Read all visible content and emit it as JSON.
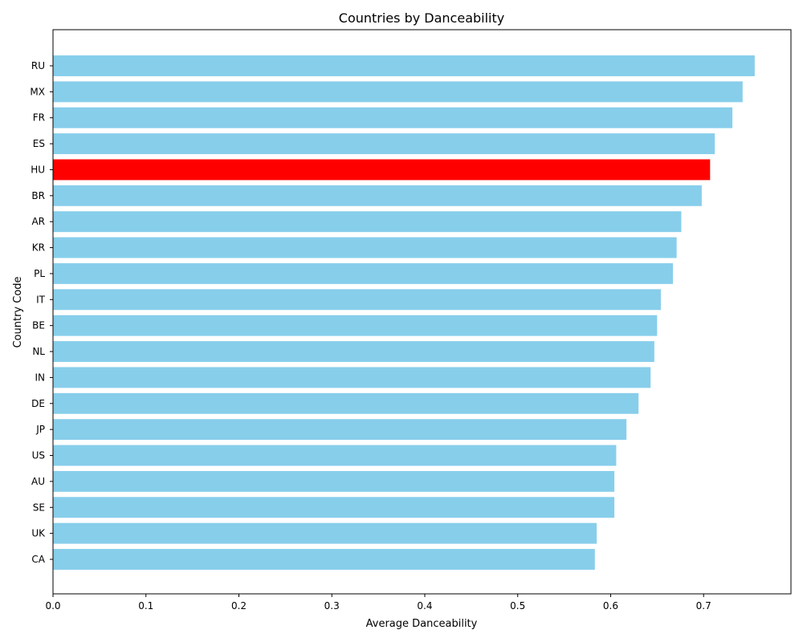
{
  "chart_data": {
    "type": "bar",
    "orientation": "horizontal",
    "title": "Countries by Danceability",
    "xlabel": "Average Danceability",
    "ylabel": "Country Code",
    "xlim": [
      0,
      0.794
    ],
    "xticks": [
      "0.0",
      "0.1",
      "0.2",
      "0.3",
      "0.4",
      "0.5",
      "0.6",
      "0.7"
    ],
    "categories": [
      "RU",
      "MX",
      "FR",
      "ES",
      "HU",
      "BR",
      "AR",
      "KR",
      "PL",
      "IT",
      "BE",
      "NL",
      "IN",
      "DE",
      "JP",
      "US",
      "AU",
      "SE",
      "UK",
      "CA"
    ],
    "values": [
      0.755,
      0.742,
      0.731,
      0.712,
      0.707,
      0.698,
      0.676,
      0.671,
      0.667,
      0.654,
      0.65,
      0.647,
      0.643,
      0.63,
      0.617,
      0.606,
      0.604,
      0.604,
      0.585,
      0.583
    ],
    "highlight": "HU",
    "colors": {
      "bar": "#87ceeb",
      "highlight": "#ff0000"
    },
    "grid": false,
    "legend": false
  }
}
